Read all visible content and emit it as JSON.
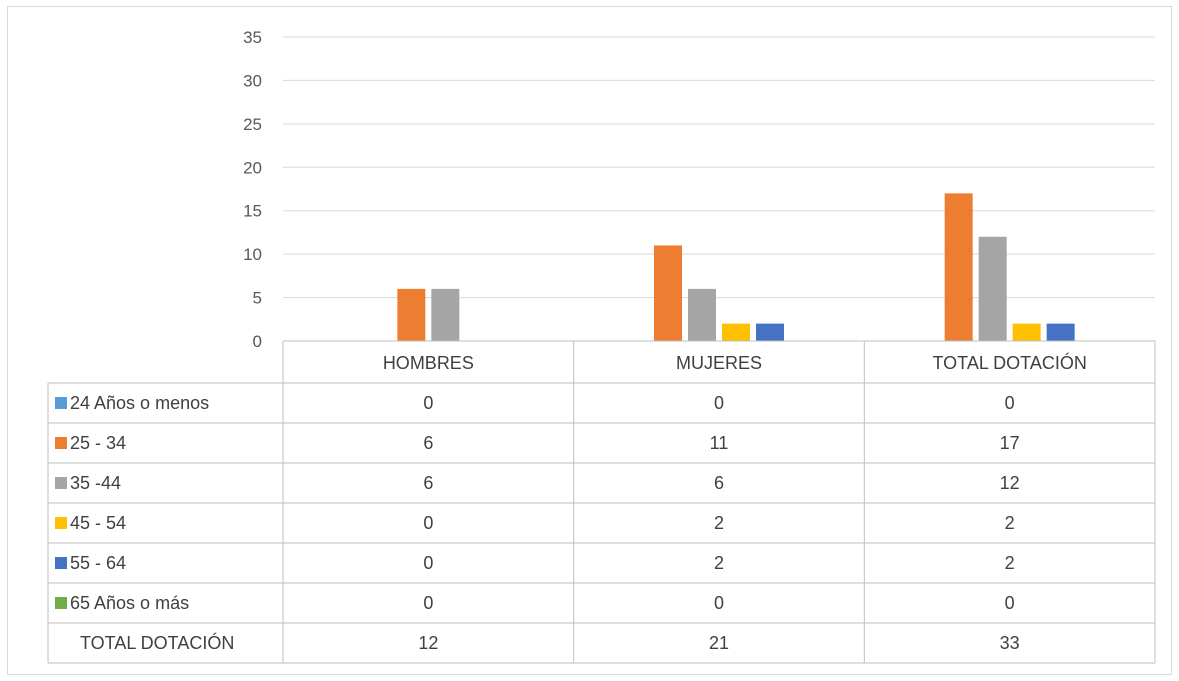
{
  "chart_data": {
    "type": "bar",
    "title": "",
    "xlabel": "",
    "ylabel": "",
    "ylim": [
      0,
      35
    ],
    "yticks": [
      0,
      5,
      10,
      15,
      20,
      25,
      30,
      35
    ],
    "grid": true,
    "legend": "data-table-left",
    "categories": [
      "HOMBRES",
      "MUJERES",
      "TOTAL DOTACIÓN"
    ],
    "series": [
      {
        "name": "24 Años o menos",
        "color": "#5B9BD5",
        "values": [
          0,
          0,
          0
        ]
      },
      {
        "name": "25 - 34",
        "color": "#ED7D31",
        "values": [
          6,
          11,
          17
        ]
      },
      {
        "name": "35 -44",
        "color": "#A5A5A5",
        "values": [
          6,
          6,
          12
        ]
      },
      {
        "name": "45 - 54",
        "color": "#FFC000",
        "values": [
          0,
          2,
          2
        ]
      },
      {
        "name": "55 - 64",
        "color": "#4472C4",
        "values": [
          0,
          2,
          2
        ]
      },
      {
        "name": "65 Años o más",
        "color": "#70AD47",
        "values": [
          0,
          0,
          0
        ]
      }
    ],
    "table_total_row": {
      "label": "TOTAL DOTACIÓN",
      "values": [
        12,
        21,
        33
      ]
    }
  }
}
